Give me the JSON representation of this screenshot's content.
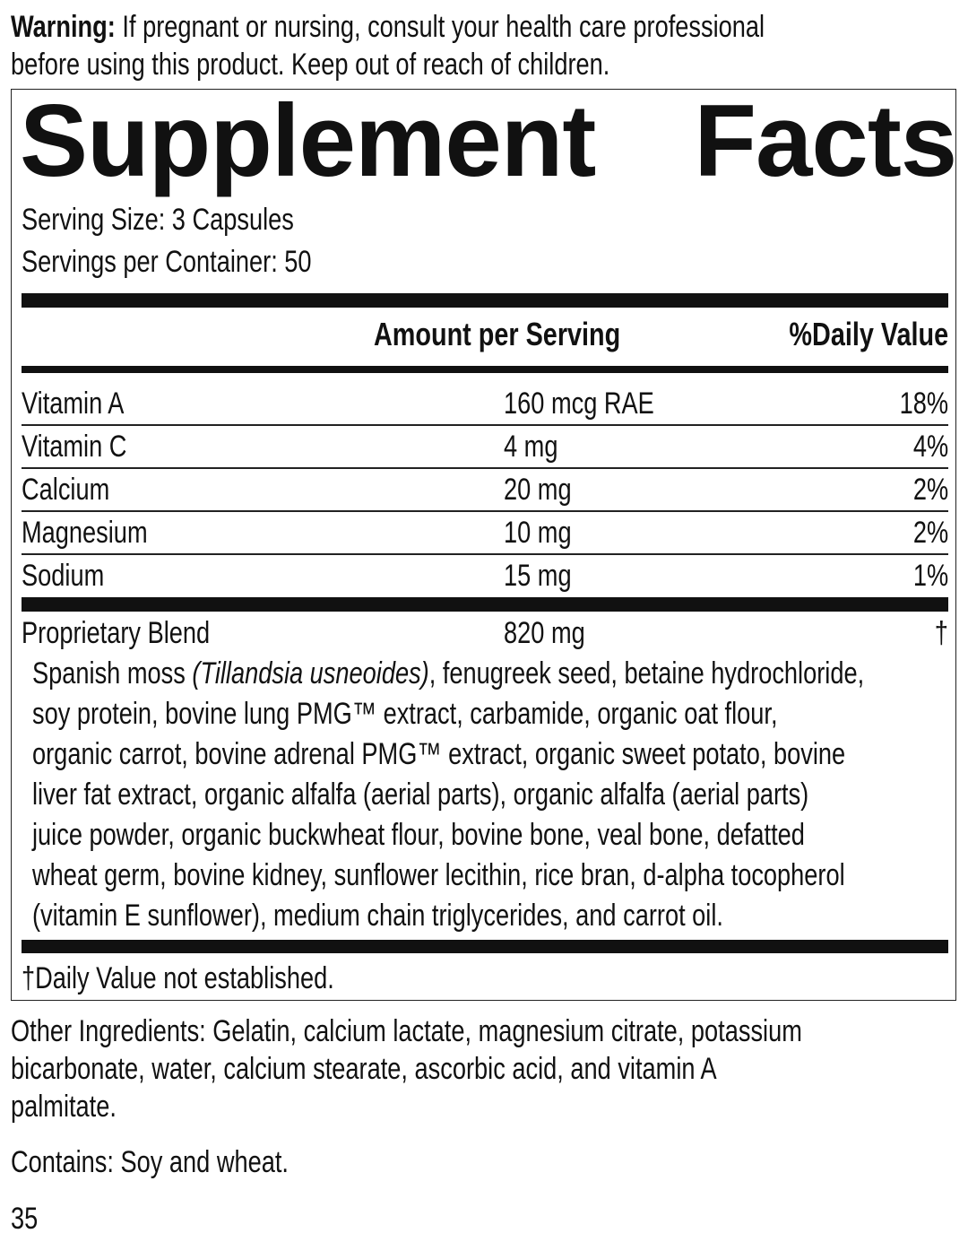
{
  "warning": {
    "label": "Warning:",
    "text_line1": "If pregnant or nursing, consult your health care professional",
    "text_line2": "before using this product. Keep out of reach of children."
  },
  "facts": {
    "title_part1": "Supplement",
    "title_part2": "Facts",
    "serving_size": "Serving Size: 3 Capsules",
    "servings_per_container": "Servings per Container: 50",
    "header_amount": "Amount per Serving",
    "header_dv": "%Daily Value",
    "rows": [
      {
        "name": "Vitamin A",
        "amount": "160 mcg RAE",
        "dv": "18%"
      },
      {
        "name": "Vitamin C",
        "amount": "4 mg",
        "dv": "4%"
      },
      {
        "name": "Calcium",
        "amount": "20 mg",
        "dv": "2%"
      },
      {
        "name": "Magnesium",
        "amount": "10 mg",
        "dv": "2%"
      },
      {
        "name": "Sodium",
        "amount": "15 mg",
        "dv": "1%"
      }
    ],
    "blend": {
      "name": "Proprietary Blend",
      "amount": "820 mg",
      "dv": "†",
      "line1_a": "Spanish moss ",
      "line1_italic": "(Tillandsia usneoides)",
      "line1_b": ", fenugreek seed, betaine hydrochloride,",
      "lines": [
        "soy protein, bovine lung PMG™ extract, carbamide, organic oat flour,",
        "organic carrot, bovine adrenal PMG™ extract, organic sweet potato, bovine",
        "liver fat extract, organic alfalfa (aerial parts), organic alfalfa (aerial parts)",
        "juice powder, organic buckwheat flour, bovine bone, veal bone, defatted",
        "wheat germ, bovine kidney, sunflower lecithin, rice bran, d-alpha tocopherol",
        "(vitamin E sunflower), medium chain triglycerides, and carrot oil."
      ]
    },
    "footnote": "†Daily Value not established."
  },
  "other_ingredients": [
    "Other Ingredients: Gelatin, calcium lactate, magnesium citrate, potassium",
    "bicarbonate, water, calcium stearate, ascorbic acid, and vitamin A",
    "palmitate."
  ],
  "contains": "Contains: Soy and wheat.",
  "page_number": "35"
}
